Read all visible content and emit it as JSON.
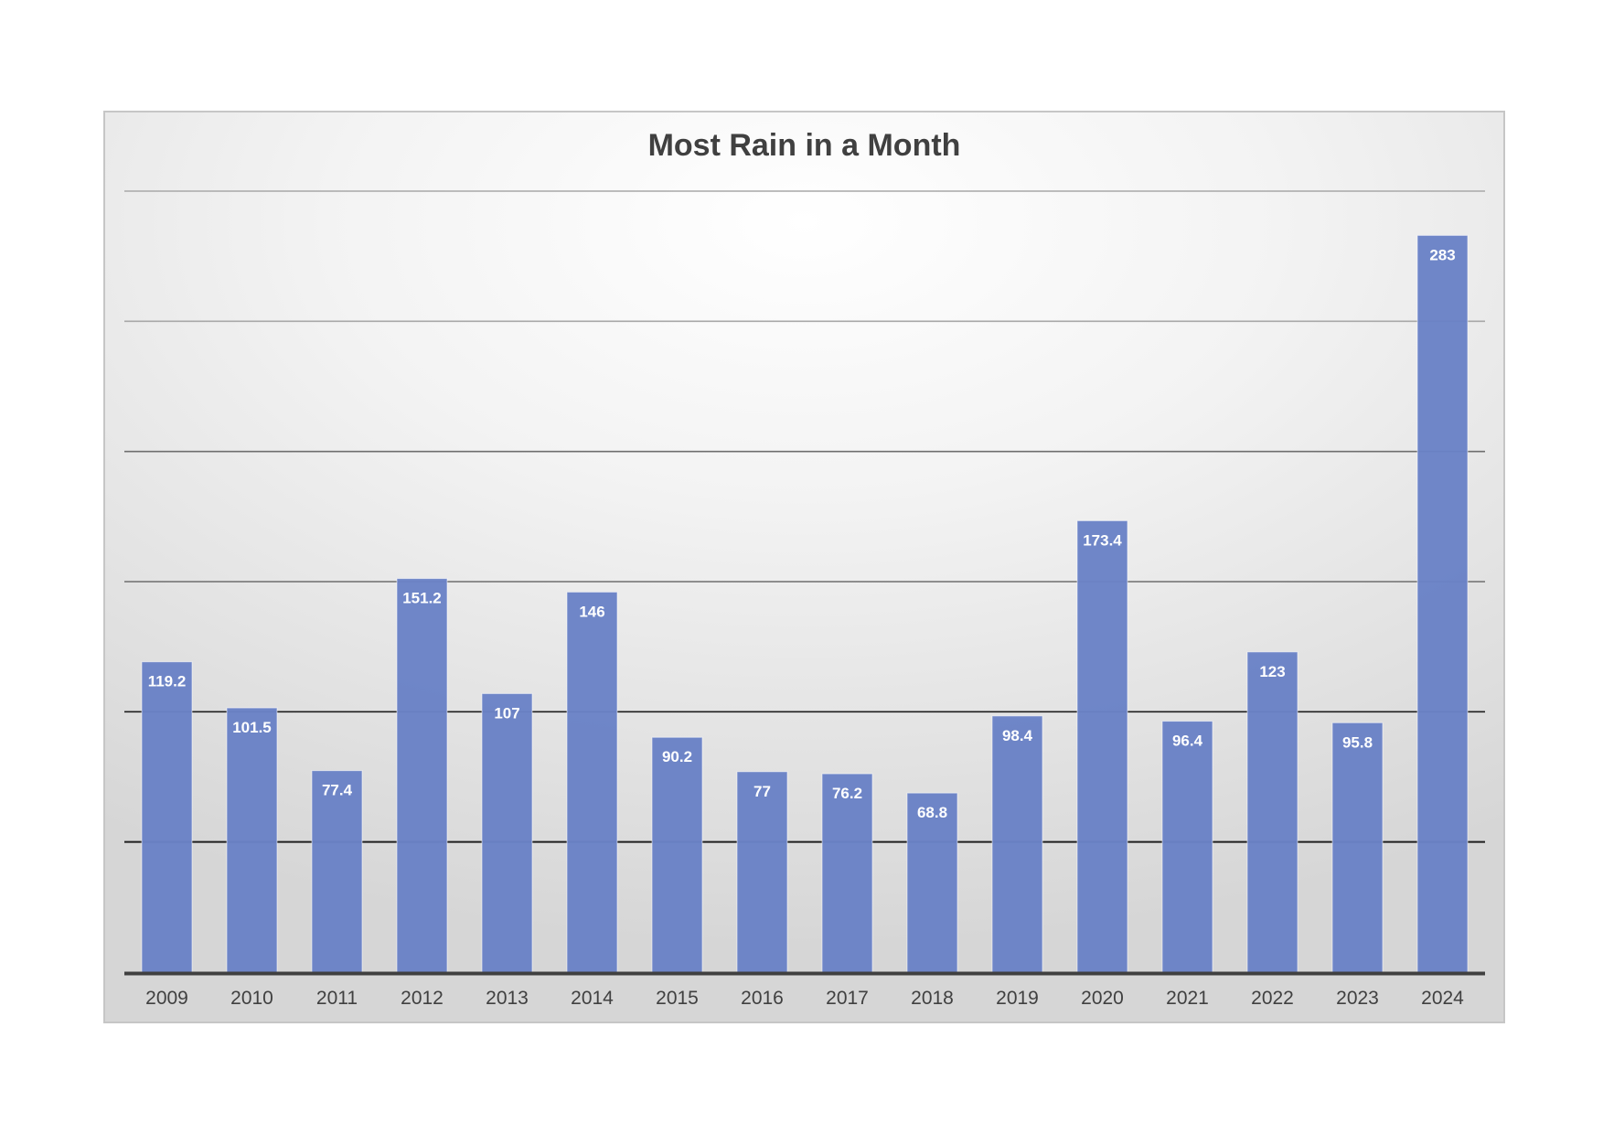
{
  "chart_data": {
    "type": "bar",
    "title": "Most Rain in a Month",
    "categories": [
      "2009",
      "2010",
      "2011",
      "2012",
      "2013",
      "2014",
      "2015",
      "2016",
      "2017",
      "2018",
      "2019",
      "2020",
      "2021",
      "2022",
      "2023",
      "2024"
    ],
    "values": [
      119.2,
      101.5,
      77.4,
      151.2,
      107,
      146,
      90.2,
      77,
      76.2,
      68.8,
      98.4,
      173.4,
      96.4,
      123,
      95.8,
      283
    ],
    "value_labels": [
      "119.2",
      "101.5",
      "77.4",
      "151.2",
      "107",
      "146",
      "90.2",
      "77",
      "76.2",
      "68.8",
      "98.4",
      "173.4",
      "96.4",
      "123",
      "95.8",
      "283"
    ],
    "ylim": [
      0,
      300
    ],
    "ygrid": [
      50,
      100,
      150,
      200,
      250,
      300
    ],
    "grid": true,
    "y_tick_labels_shown": false,
    "legend": "none",
    "xlabel": "",
    "ylabel": "",
    "colors": {
      "bar": "#6a82c6",
      "bar_label": "#ffffff",
      "axis": "#404040",
      "tick_label": "#404040"
    }
  }
}
